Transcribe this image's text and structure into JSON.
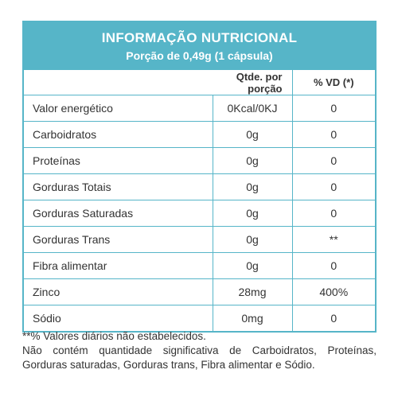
{
  "header": {
    "title": "INFORMAÇÃO NUTRICIONAL",
    "subtitle": "Porção de 0,49g (1 cápsula)"
  },
  "table": {
    "columns": [
      "",
      "Qtde. por porção",
      "% VD (*)"
    ],
    "rows": [
      {
        "name": "Valor energético",
        "qty": "0Kcal/0KJ",
        "vd": "0"
      },
      {
        "name": "Carboidratos",
        "qty": "0g",
        "vd": "0"
      },
      {
        "name": "Proteínas",
        "qty": "0g",
        "vd": "0"
      },
      {
        "name": "Gorduras Totais",
        "qty": "0g",
        "vd": "0"
      },
      {
        "name": "Gorduras Saturadas",
        "qty": "0g",
        "vd": "0"
      },
      {
        "name": "Gorduras Trans",
        "qty": "0g",
        "vd": "**"
      },
      {
        "name": "Fibra alimentar",
        "qty": "0g",
        "vd": "0"
      },
      {
        "name": "Zinco",
        "qty": "28mg",
        "vd": "400%"
      },
      {
        "name": "Sódio",
        "qty": "0mg",
        "vd": "0"
      }
    ]
  },
  "footer": {
    "note1": "**% Valores diários não estabelecidos.",
    "note2_line1": "Não contém quantidade significativa de Carboidratos, Proteínas,",
    "note2_line2": "Gorduras saturadas, Gorduras trans, Fibra alimentar e Sódio."
  },
  "colors": {
    "accent": "#56b5c8",
    "text": "#333333"
  }
}
